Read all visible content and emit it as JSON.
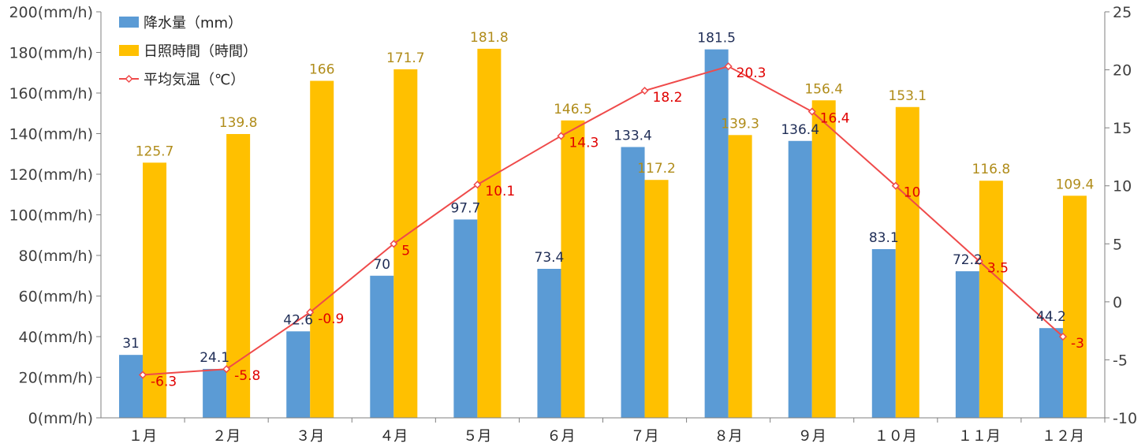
{
  "chart_data": {
    "type": "bar",
    "categories": [
      "１月",
      "２月",
      "３月",
      "４月",
      "５月",
      "６月",
      "７月",
      "８月",
      "９月",
      "１０月",
      "１１月",
      "１２月"
    ],
    "series": [
      {
        "name": "降水量（mm）",
        "kind": "bar",
        "axis": "left",
        "color": "#5b9bd5",
        "label_color": "#1f2d56",
        "values": [
          31,
          24.1,
          42.6,
          70,
          97.7,
          73.4,
          133.4,
          181.5,
          136.4,
          83.1,
          72.2,
          44.2
        ]
      },
      {
        "name": "日照時間（時間）",
        "kind": "bar",
        "axis": "left",
        "color": "#ffc000",
        "label_color": "#b08c1a",
        "values": [
          125.7,
          139.8,
          166,
          171.7,
          181.8,
          146.5,
          117.2,
          139.3,
          156.4,
          153.1,
          116.8,
          109.4
        ]
      },
      {
        "name": "平均気温（℃）",
        "kind": "line",
        "axis": "right",
        "color": "#ef4a4a",
        "label_color": "#e00000",
        "values": [
          -6.3,
          -5.8,
          -0.9,
          5,
          10.1,
          14.3,
          18.2,
          20.3,
          16.4,
          10,
          3.5,
          -3
        ]
      }
    ],
    "left_axis": {
      "min": 0,
      "max": 200,
      "step": 20,
      "unit_suffix": "(mm/h)",
      "tick_labels": [
        "0(mm/h)",
        "20(mm/h)",
        "40(mm/h)",
        "60(mm/h)",
        "80(mm/h)",
        "100(mm/h)",
        "120(mm/h)",
        "140(mm/h)",
        "160(mm/h)",
        "180(mm/h)",
        "200(mm/h)"
      ]
    },
    "right_axis": {
      "min": -10,
      "max": 25,
      "step": 5,
      "tick_labels": [
        "-10",
        "-5",
        "0",
        "5",
        "10",
        "15",
        "20",
        "25"
      ]
    },
    "legend_position": "top-left",
    "grid": false,
    "title": ""
  }
}
